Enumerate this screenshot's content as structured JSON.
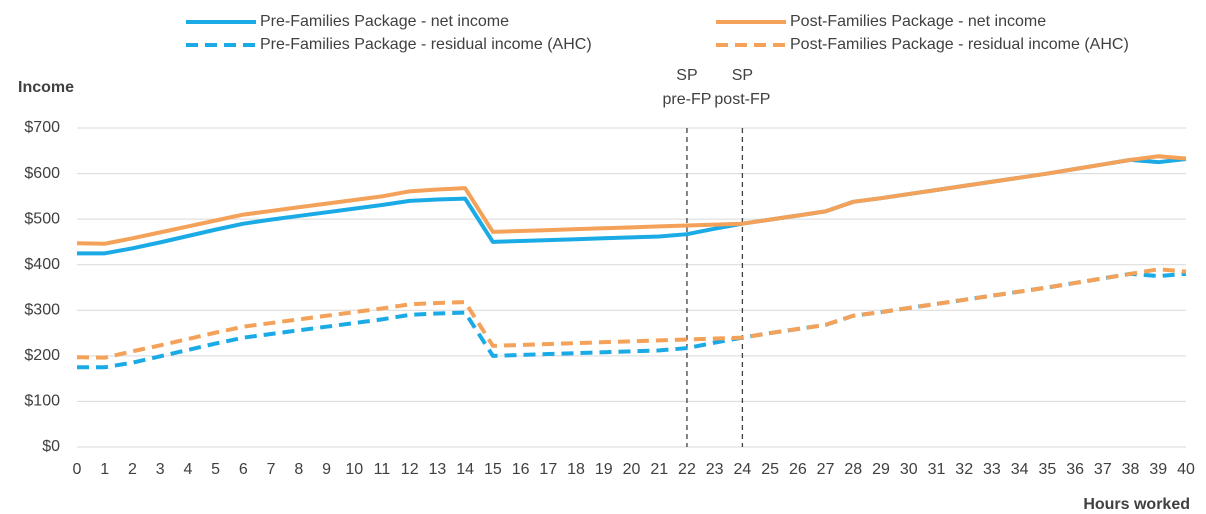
{
  "chart_data": {
    "type": "line",
    "y_label": "Income",
    "x_label": "Hours worked",
    "x": [
      0,
      1,
      2,
      3,
      4,
      5,
      6,
      7,
      8,
      9,
      10,
      11,
      12,
      13,
      14,
      15,
      16,
      17,
      18,
      19,
      20,
      21,
      22,
      23,
      24,
      25,
      26,
      27,
      28,
      29,
      30,
      31,
      32,
      33,
      34,
      35,
      36,
      37,
      38,
      39,
      40
    ],
    "xlim": [
      0,
      40
    ],
    "xticks": [
      0,
      1,
      2,
      3,
      4,
      5,
      6,
      7,
      8,
      9,
      10,
      11,
      12,
      13,
      14,
      15,
      16,
      17,
      18,
      19,
      20,
      21,
      22,
      23,
      24,
      25,
      26,
      27,
      28,
      29,
      30,
      31,
      32,
      33,
      34,
      35,
      36,
      37,
      38,
      39,
      40
    ],
    "ylim": [
      0,
      700
    ],
    "yticks": [
      {
        "value": 0,
        "label": "$0"
      },
      {
        "value": 100,
        "label": "$100"
      },
      {
        "value": 200,
        "label": "$200"
      },
      {
        "value": 300,
        "label": "$300"
      },
      {
        "value": 400,
        "label": "$400"
      },
      {
        "value": 500,
        "label": "$500"
      },
      {
        "value": 600,
        "label": "$600"
      },
      {
        "value": 700,
        "label": "$700"
      }
    ],
    "grid": true,
    "legend": "top",
    "series": [
      {
        "name": "Pre-Families Package - net income",
        "color": "#1aaae6",
        "dash": false,
        "values": [
          425,
          425,
          436,
          449,
          463,
          477,
          490,
          499,
          507,
          515,
          523,
          531,
          540,
          543,
          545,
          450,
          452,
          454,
          456,
          458,
          460,
          462,
          467,
          479,
          490,
          499,
          508,
          517,
          538,
          546,
          555,
          564,
          573,
          582,
          591,
          600,
          610,
          620,
          630,
          625,
          632
        ]
      },
      {
        "name": "Post-Families Package - net income",
        "color": "#f4a259",
        "dash": false,
        "values": [
          447,
          446,
          458,
          471,
          484,
          497,
          510,
          518,
          526,
          534,
          542,
          550,
          561,
          565,
          568,
          472,
          474,
          476,
          478,
          480,
          482,
          484,
          486,
          488,
          490,
          499,
          508,
          517,
          538,
          546,
          555,
          564,
          573,
          582,
          591,
          600,
          610,
          620,
          630,
          638,
          633
        ]
      },
      {
        "name": "Pre-Families Package - residual income (AHC)",
        "color": "#1aaae6",
        "dash": true,
        "values": [
          175,
          175,
          185,
          199,
          213,
          227,
          240,
          248,
          256,
          264,
          272,
          280,
          290,
          293,
          295,
          200,
          202,
          204,
          206,
          208,
          210,
          212,
          217,
          229,
          240,
          250,
          259,
          268,
          288,
          296,
          305,
          314,
          323,
          332,
          341,
          350,
          360,
          370,
          380,
          375,
          380
        ]
      },
      {
        "name": "Post-Families Package - residual income (AHC)",
        "color": "#f4a259",
        "dash": true,
        "values": [
          197,
          196,
          210,
          223,
          237,
          251,
          264,
          272,
          280,
          288,
          296,
          304,
          313,
          316,
          318,
          222,
          224,
          226,
          228,
          230,
          232,
          234,
          236,
          238,
          240,
          250,
          259,
          268,
          288,
          296,
          305,
          314,
          323,
          332,
          341,
          350,
          360,
          370,
          380,
          390,
          385
        ]
      }
    ],
    "annotations": [
      {
        "x": 22,
        "text": [
          "SP",
          "pre-FP"
        ]
      },
      {
        "x": 24,
        "text": [
          "SP",
          "post-FP"
        ]
      }
    ]
  }
}
